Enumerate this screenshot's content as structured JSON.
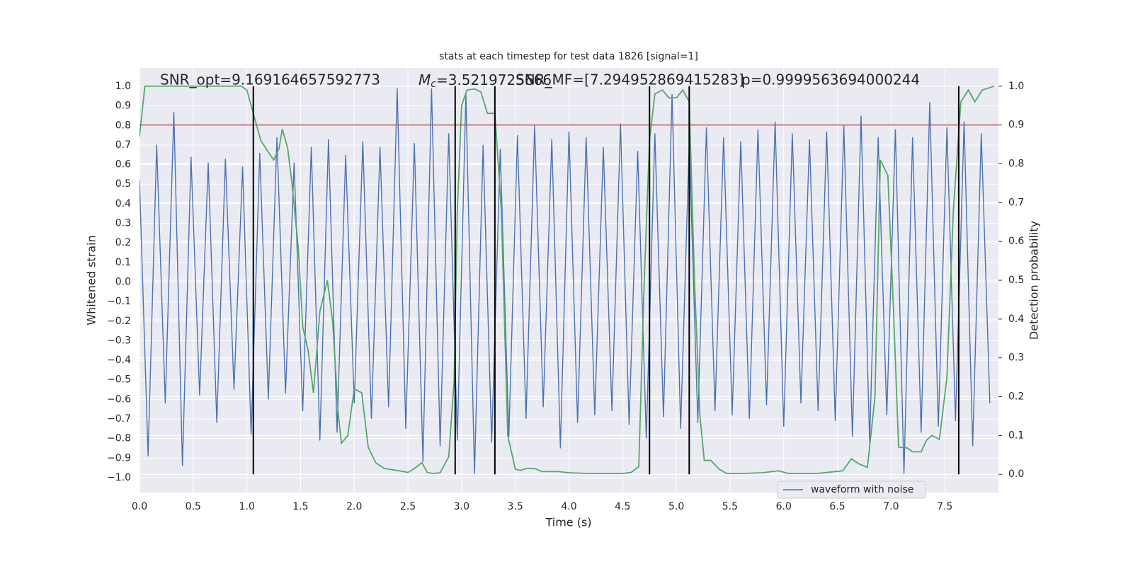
{
  "chart_data": {
    "type": "line",
    "title": "stats at each timestep for test data 1826 [signal=1]",
    "x_label": "Time (s)",
    "y_label": "Whitened strain",
    "y2_label": "Detection probability",
    "annotations": [
      {
        "text": "SNR_opt=9.169164657592773"
      },
      {
        "symbol": "M",
        "subscript": "c",
        "text": "=3.5219725666"
      },
      {
        "text": "SNR_MF=[7.294952869415283]"
      },
      {
        "text": "p=0.9999563694000244"
      }
    ],
    "xlim": [
      0,
      8
    ],
    "ylim": [
      -1.076,
      1.094
    ],
    "y2lim": [
      -0.047,
      1.047
    ],
    "xticks": [
      {
        "value": 0,
        "label": "0.0"
      },
      {
        "value": 0.5,
        "label": "0.5"
      },
      {
        "value": 1,
        "label": "1.0"
      },
      {
        "value": 1.5,
        "label": "1.5"
      },
      {
        "value": 2,
        "label": "2.0"
      },
      {
        "value": 2.5,
        "label": "2.5"
      },
      {
        "value": 3,
        "label": "3.0"
      },
      {
        "value": 3.5,
        "label": "3.5"
      },
      {
        "value": 4,
        "label": "4.0"
      },
      {
        "value": 4.5,
        "label": "4.5"
      },
      {
        "value": 5,
        "label": "5.0"
      },
      {
        "value": 5.5,
        "label": "5.5"
      },
      {
        "value": 6,
        "label": "6.0"
      },
      {
        "value": 6.5,
        "label": "6.5"
      },
      {
        "value": 7,
        "label": "7.0"
      },
      {
        "value": 7.5,
        "label": "7.5"
      }
    ],
    "yticks": [
      {
        "value": 1,
        "label": "1.0"
      },
      {
        "value": 0.9,
        "label": "0.9"
      },
      {
        "value": 0.8,
        "label": "0.8"
      },
      {
        "value": 0.7,
        "label": "0.7"
      },
      {
        "value": 0.6,
        "label": "0.6"
      },
      {
        "value": 0.5,
        "label": "0.5"
      },
      {
        "value": 0.4,
        "label": "0.4"
      },
      {
        "value": 0.3,
        "label": "0.3"
      },
      {
        "value": 0.2,
        "label": "0.2"
      },
      {
        "value": 0.1,
        "label": "0.1"
      },
      {
        "value": 0,
        "label": "0.0"
      },
      {
        "value": -0.1,
        "label": "−0.1"
      },
      {
        "value": -0.2,
        "label": "−0.2"
      },
      {
        "value": -0.3,
        "label": "−0.3"
      },
      {
        "value": -0.4,
        "label": "−0.4"
      },
      {
        "value": -0.5,
        "label": "−0.5"
      },
      {
        "value": -0.6,
        "label": "−0.6"
      },
      {
        "value": -0.7,
        "label": "−0.7"
      },
      {
        "value": -0.8,
        "label": "−0.8"
      },
      {
        "value": -0.9,
        "label": "−0.9"
      },
      {
        "value": -1,
        "label": "−1.0"
      }
    ],
    "y2ticks": [
      {
        "value": 1,
        "label": "1.0"
      },
      {
        "value": 0.9,
        "label": "0.9"
      },
      {
        "value": 0.8,
        "label": "0.8"
      },
      {
        "value": 0.7,
        "label": "0.7"
      },
      {
        "value": 0.6,
        "label": "0.6"
      },
      {
        "value": 0.5,
        "label": "0.5"
      },
      {
        "value": 0.4,
        "label": "0.4"
      },
      {
        "value": 0.3,
        "label": "0.3"
      },
      {
        "value": 0.2,
        "label": "0.2"
      },
      {
        "value": 0.1,
        "label": "0.1"
      },
      {
        "value": 0,
        "label": "0.0"
      }
    ],
    "grid": true,
    "legend": "lower right",
    "series": [
      {
        "name": "waveform with noise",
        "color": "#4c72b0",
        "x": [
          0,
          0.08,
          0.16,
          0.24,
          0.32,
          0.4,
          0.48,
          0.56,
          0.64,
          0.72,
          0.8,
          0.88,
          0.96,
          1.04,
          1.12,
          1.2,
          1.28,
          1.36,
          1.44,
          1.52,
          1.6,
          1.68,
          1.76,
          1.84,
          1.92,
          2,
          2.08,
          2.16,
          2.24,
          2.32,
          2.4,
          2.48,
          2.56,
          2.64,
          2.72,
          2.8,
          2.88,
          2.96,
          3.04,
          3.12,
          3.2,
          3.28,
          3.36,
          3.44,
          3.52,
          3.6,
          3.68,
          3.76,
          3.84,
          3.92,
          4,
          4.08,
          4.16,
          4.24,
          4.32,
          4.4,
          4.48,
          4.56,
          4.64,
          4.72,
          4.8,
          4.88,
          4.96,
          5.04,
          5.12,
          5.2,
          5.28,
          5.36,
          5.44,
          5.52,
          5.6,
          5.68,
          5.76,
          5.84,
          5.92,
          6,
          6.08,
          6.16,
          6.24,
          6.32,
          6.4,
          6.48,
          6.56,
          6.64,
          6.72,
          6.8,
          6.88,
          6.96,
          7.04,
          7.12,
          7.2,
          7.28,
          7.36,
          7.44,
          7.52,
          7.6,
          7.68,
          7.76,
          7.84,
          7.92
        ],
        "values": [
          0.52,
          -0.89,
          0.7,
          -0.62,
          0.87,
          -0.94,
          0.64,
          -0.58,
          0.61,
          -0.72,
          0.63,
          -0.55,
          0.59,
          -0.78,
          0.66,
          -0.6,
          0.74,
          -0.57,
          0.61,
          -0.66,
          0.69,
          -0.81,
          0.73,
          -0.77,
          0.65,
          -0.62,
          0.72,
          -0.7,
          0.69,
          -0.64,
          0.99,
          -0.75,
          0.71,
          -0.92,
          0.99,
          -0.84,
          0.76,
          -0.81,
          0.96,
          -0.98,
          0.7,
          -0.82,
          0.68,
          -0.79,
          0.75,
          -0.7,
          0.8,
          -0.64,
          0.73,
          -0.85,
          0.77,
          -0.72,
          0.74,
          -0.68,
          0.69,
          -0.66,
          0.81,
          -0.73,
          0.67,
          -0.8,
          0.76,
          -0.69,
          0.96,
          -0.75,
          0.71,
          -0.72,
          0.79,
          -0.66,
          0.74,
          -0.68,
          0.72,
          -0.7,
          0.78,
          -0.63,
          0.82,
          -0.74,
          0.76,
          -0.62,
          0.73,
          -0.66,
          0.77,
          -0.71,
          0.8,
          -0.79,
          0.85,
          -0.82,
          0.74,
          -0.68,
          0.78,
          -0.98,
          0.74,
          -0.77,
          0.92,
          -0.74,
          0.79,
          -0.71,
          0.82,
          -0.84,
          0.76,
          -0.62
        ]
      },
      {
        "color": "#55a868",
        "axis": "y2",
        "x": [
          0,
          0.05,
          0.95,
          1,
          1.06,
          1.13,
          1.2,
          1.25,
          1.3,
          1.33,
          1.38,
          1.42,
          1.48,
          1.52,
          1.57,
          1.62,
          1.68,
          1.75,
          1.8,
          1.85,
          1.88,
          1.94,
          2,
          2.07,
          2.13,
          2.2,
          2.28,
          2.4,
          2.5,
          2.56,
          2.63,
          2.68,
          2.73,
          2.8,
          2.88,
          2.93,
          2.96,
          3,
          3.05,
          3.12,
          3.18,
          3.24,
          3.31,
          3.37,
          3.43,
          3.5,
          3.55,
          3.6,
          3.68,
          3.75,
          3.9,
          4,
          4.2,
          4.5,
          4.58,
          4.65,
          4.7,
          4.75,
          4.8,
          4.87,
          4.93,
          5,
          5.06,
          5.12,
          5.17,
          5.22,
          5.26,
          5.32,
          5.4,
          5.47,
          5.6,
          5.8,
          5.95,
          6.05,
          6.3,
          6.55,
          6.63,
          6.7,
          6.78,
          6.85,
          6.9,
          6.97,
          7.02,
          7.07,
          7.15,
          7.2,
          7.28,
          7.33,
          7.38,
          7.45,
          7.52,
          7.58,
          7.65,
          7.72,
          7.78,
          7.85,
          7.96
        ],
        "values": [
          0.87,
          1,
          1,
          0.99,
          0.93,
          0.86,
          0.83,
          0.81,
          0.84,
          0.89,
          0.84,
          0.75,
          0.58,
          0.38,
          0.32,
          0.21,
          0.42,
          0.5,
          0.39,
          0.16,
          0.08,
          0.1,
          0.22,
          0.21,
          0.07,
          0.03,
          0.015,
          0.01,
          0.005,
          0.015,
          0.03,
          0.005,
          0.002,
          0.004,
          0.045,
          0.24,
          0.68,
          0.95,
          0.99,
          0.993,
          0.985,
          0.93,
          0.93,
          0.68,
          0.1,
          0.013,
          0.01,
          0.015,
          0.015,
          0.007,
          0.007,
          0.004,
          0.002,
          0.002,
          0.005,
          0.02,
          0.49,
          0.86,
          0.98,
          0.99,
          0.97,
          0.97,
          0.99,
          0.96,
          0.49,
          0.15,
          0.036,
          0.036,
          0.013,
          0.002,
          0.002,
          0.004,
          0.009,
          0.002,
          0.002,
          0.009,
          0.04,
          0.027,
          0.018,
          0.2,
          0.81,
          0.77,
          0.44,
          0.07,
          0.068,
          0.058,
          0.058,
          0.088,
          0.1,
          0.09,
          0.25,
          0.68,
          0.96,
          0.99,
          0.96,
          0.99,
          1
        ]
      }
    ],
    "hlines": [
      {
        "value": 0.9,
        "axis": "y2",
        "color": "#c44e52"
      }
    ],
    "vlines": {
      "x": [
        1.06,
        2.94,
        3.31,
        4.75,
        5.12,
        7.63
      ],
      "ymin": 0,
      "ymax": 1,
      "axis": "y2",
      "color": "#000000"
    }
  }
}
